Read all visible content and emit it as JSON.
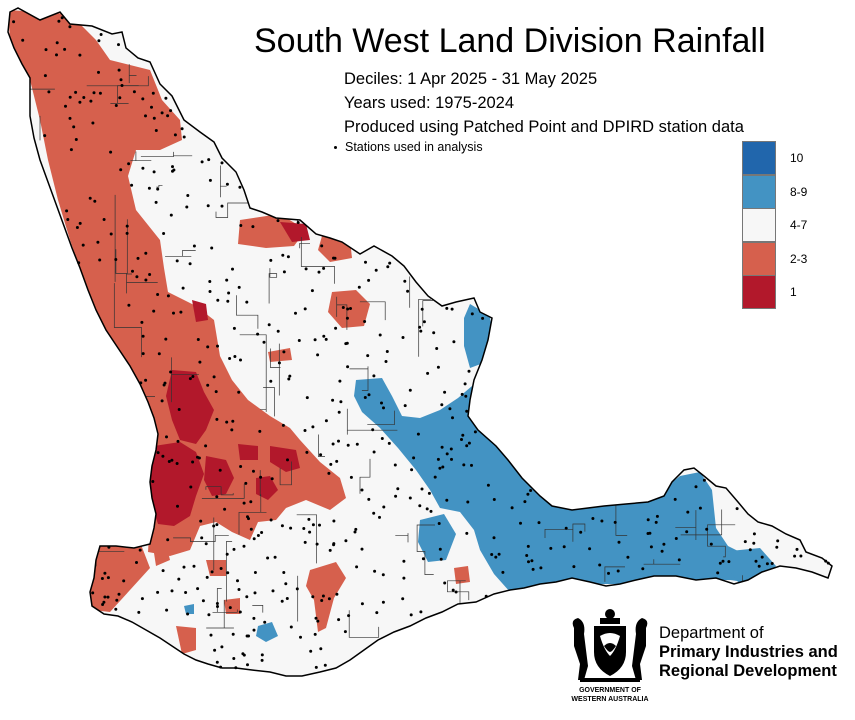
{
  "map": {
    "title": "South West Land Division Rainfall",
    "subtitle_lines": [
      "Deciles:  1 Apr 2025 - 31 May 2025",
      "Years used: 1975-2024",
      "Produced using Patched Point and DPIRD station data"
    ],
    "stations_note": "Stations used in analysis",
    "legend": [
      {
        "label": "10",
        "color": "#2166ac"
      },
      {
        "label": "8-9",
        "color": "#4393c3"
      },
      {
        "label": "4-7",
        "color": "#f7f7f7"
      },
      {
        "label": "2-3",
        "color": "#d6604d"
      },
      {
        "label": "1",
        "color": "#b2182b"
      }
    ],
    "colors": {
      "land_default": "#f7f7f7",
      "decile_2_3": "#d6604d",
      "decile_1": "#b2182b",
      "decile_8_9": "#4393c3",
      "boundary": "#000000",
      "shire_boundaries": "#333333",
      "station_dot": "#000000"
    },
    "footer": {
      "department_lines": [
        "Department of",
        "Primary Industries and",
        "Regional Development"
      ],
      "government_label_lines": [
        "GOVERNMENT OF",
        "WESTERN AUSTRALIA"
      ],
      "crest_icon": "wa-coat-of-arms-icon"
    }
  }
}
